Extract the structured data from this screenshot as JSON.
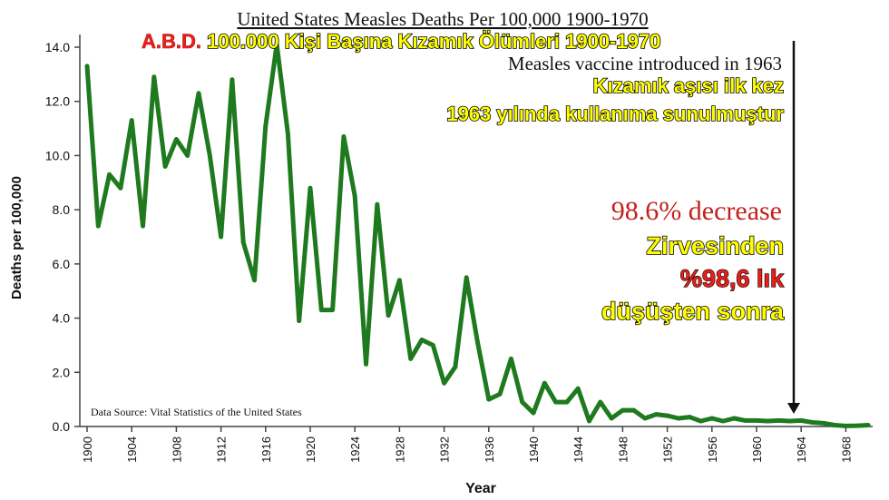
{
  "chart_data": {
    "type": "line",
    "title": "United States Measles Deaths Per 100,000 1900-1970",
    "xlabel": "Year",
    "ylabel": "Deaths per 100,000",
    "xlim": [
      1900,
      1970
    ],
    "ylim": [
      0,
      14
    ],
    "grid": false,
    "x_ticks": [
      1900,
      1904,
      1908,
      1912,
      1916,
      1920,
      1924,
      1928,
      1932,
      1936,
      1940,
      1944,
      1948,
      1952,
      1956,
      1960,
      1964,
      1968
    ],
    "y_ticks": [
      "0.0",
      "2.0",
      "4.0",
      "6.0",
      "8.0",
      "10.0",
      "12.0",
      "14.0"
    ],
    "series": [
      {
        "color": "#1f7a1f",
        "x": [
          1900,
          1901,
          1902,
          1903,
          1904,
          1905,
          1906,
          1907,
          1908,
          1909,
          1910,
          1911,
          1912,
          1913,
          1914,
          1915,
          1916,
          1917,
          1918,
          1919,
          1920,
          1921,
          1922,
          1923,
          1924,
          1925,
          1926,
          1927,
          1928,
          1929,
          1930,
          1931,
          1932,
          1933,
          1934,
          1935,
          1936,
          1937,
          1938,
          1939,
          1940,
          1941,
          1942,
          1943,
          1944,
          1945,
          1946,
          1947,
          1948,
          1949,
          1950,
          1951,
          1952,
          1953,
          1954,
          1955,
          1956,
          1957,
          1958,
          1959,
          1960,
          1961,
          1962,
          1963,
          1964,
          1965,
          1966,
          1967,
          1968,
          1969,
          1970
        ],
        "values": [
          13.3,
          7.4,
          9.3,
          8.8,
          11.3,
          7.4,
          12.9,
          9.6,
          10.6,
          10.0,
          12.3,
          10.0,
          7.0,
          12.8,
          6.8,
          5.4,
          11.1,
          14.1,
          10.8,
          3.9,
          8.8,
          4.3,
          4.3,
          10.7,
          8.5,
          2.3,
          8.2,
          4.1,
          5.4,
          2.5,
          3.2,
          3.0,
          1.6,
          2.2,
          5.5,
          3.1,
          1.0,
          1.2,
          2.5,
          0.9,
          0.5,
          1.6,
          0.9,
          0.9,
          1.4,
          0.2,
          0.9,
          0.3,
          0.6,
          0.6,
          0.3,
          0.45,
          0.4,
          0.3,
          0.35,
          0.2,
          0.3,
          0.2,
          0.3,
          0.22,
          0.22,
          0.2,
          0.22,
          0.2,
          0.22,
          0.15,
          0.12,
          0.05,
          0.02,
          0.03,
          0.05
        ]
      }
    ],
    "annotations": [
      {
        "text": "Measles vaccine introduced in 1963",
        "x": 1963
      },
      {
        "text": "98.6% decrease"
      },
      {
        "text": "Data Source:  Vital Statistics of the United States"
      }
    ]
  },
  "overlay_tr": {
    "title_prefix": "A.B.D.",
    "title_rest": "100.000 Kişi Başına Kızamık Ölümleri 1900-1970",
    "vaccine_line1": "Kızamık aşısı ilk kez",
    "vaccine_line2": "1963 yılında kullanıma sunulmuştur",
    "decrease_line1": "Zirvesinden",
    "decrease_line2": "%98,6 lık",
    "decrease_line3": "düşüşten sonra"
  }
}
